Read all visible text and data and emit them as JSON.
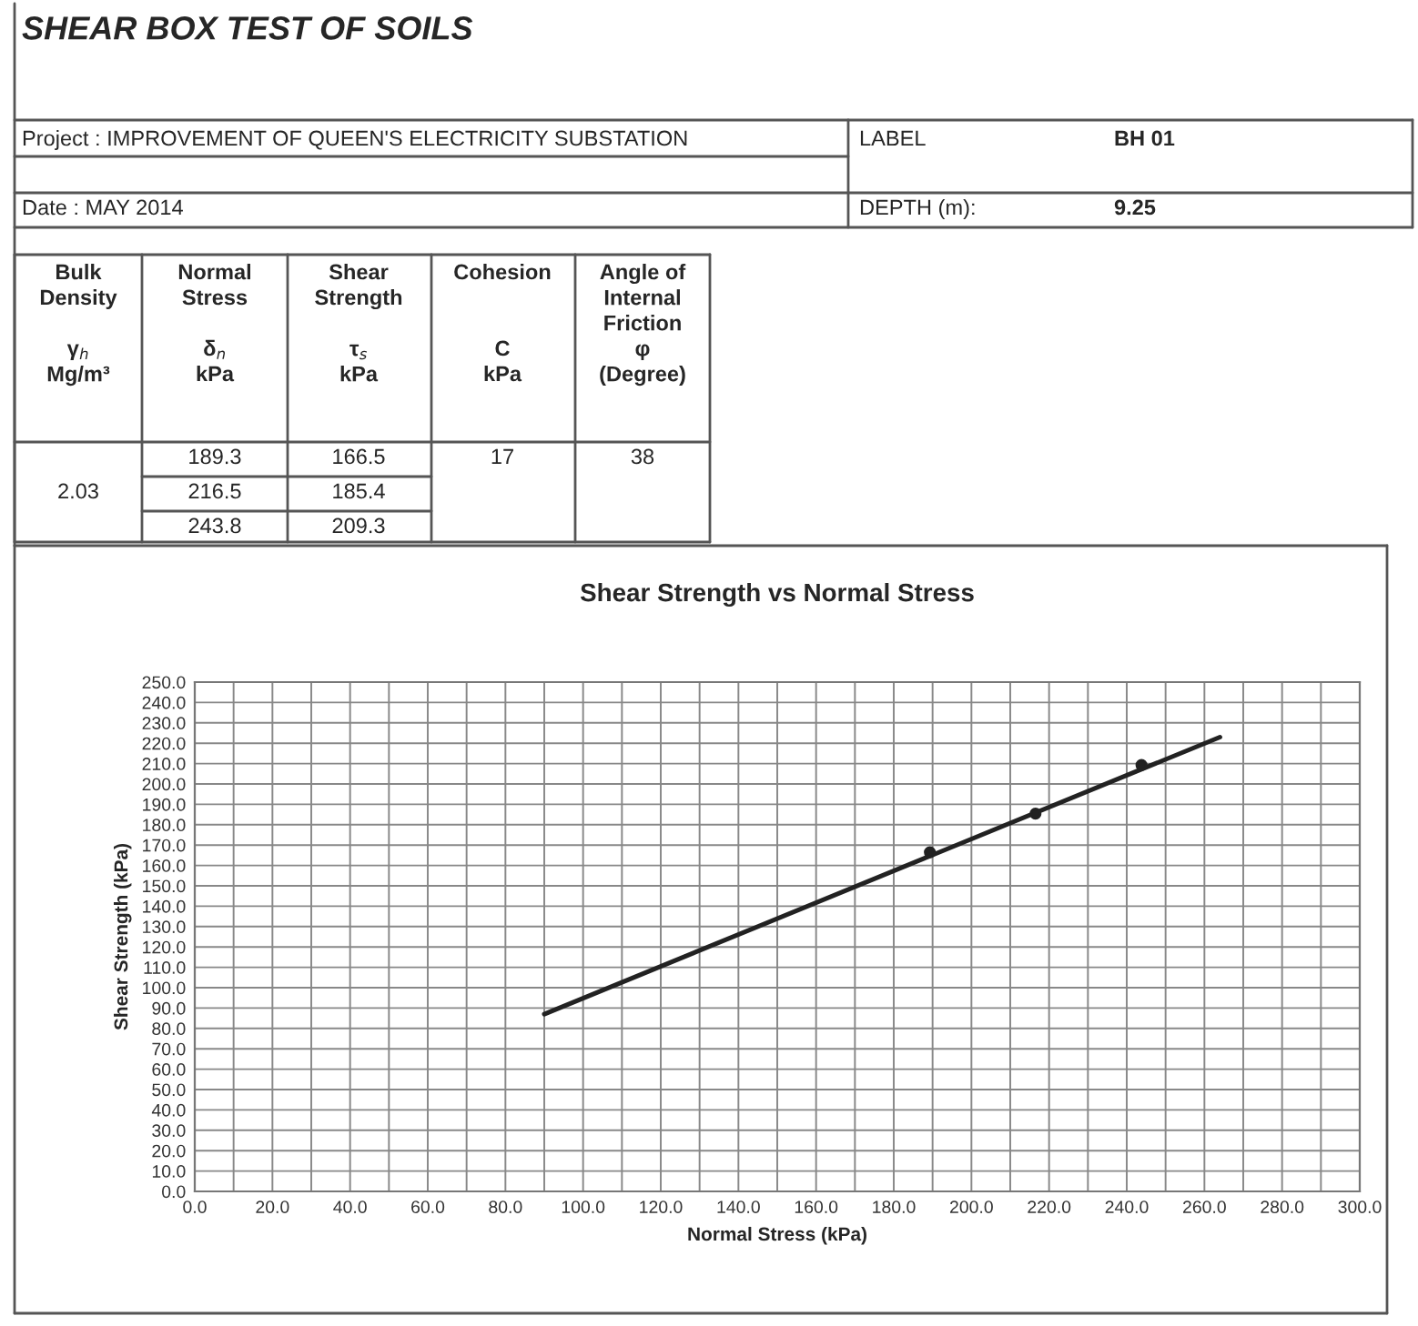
{
  "chart_data": {
    "type": "scatter",
    "title": "Shear Strength vs Normal Stress",
    "xlabel": "Normal Stress (kPa)",
    "ylabel": "Shear Strength (kPa)",
    "annotations": [
      "SHEAR BOX TEST OF SOILS",
      "Project : IMPROVEMENT OF QUEEN'S ELECTRICITY SUBSTATION",
      "Date : MAY 2014",
      "LABEL",
      "BH 01",
      "DEPTH (m):",
      "9.25",
      "Bulk\nDensity\n\nγ$_{h}$\nMg/m³",
      "Normal\nStress\n\nδ$_{n}$\nkPa",
      "Shear\nStrength\n\nτ$_{s}$\nkPa",
      "Cohesion\n\n\nC\nkPa",
      "Angle of\nInternal\nFriction\nφ\n(Degree)",
      "2.03",
      "189.3",
      "216.5",
      "243.8",
      "166.5",
      "185.4",
      "209.3",
      "17",
      "38"
    ],
    "series": [
      {
        "color": "#222222",
        "marker": "circle",
        "x": [
          189.3,
          216.5,
          243.8
        ],
        "values": [
          166.5,
          185.4,
          209.3
        ]
      },
      {
        "type": "line",
        "color": "#222222",
        "marker": "none",
        "line_style": "solid",
        "x": [
          90,
          264
        ],
        "values": [
          87,
          223
        ]
      }
    ],
    "xlim": [
      0,
      300
    ],
    "ylim": [
      0,
      250
    ],
    "xticks": [
      {
        "value": 0,
        "label": "0.0"
      },
      {
        "value": 10,
        "label": null
      },
      {
        "value": 20,
        "label": "20.0"
      },
      {
        "value": 30,
        "label": null
      },
      {
        "value": 40,
        "label": "40.0"
      },
      {
        "value": 50,
        "label": null
      },
      {
        "value": 60,
        "label": "60.0"
      },
      {
        "value": 70,
        "label": null
      },
      {
        "value": 80,
        "label": "80.0"
      },
      {
        "value": 90,
        "label": null
      },
      {
        "value": 100,
        "label": "100.0"
      },
      {
        "value": 110,
        "label": null
      },
      {
        "value": 120,
        "label": "120.0"
      },
      {
        "value": 130,
        "label": null
      },
      {
        "value": 140,
        "label": "140.0"
      },
      {
        "value": 150,
        "label": null
      },
      {
        "value": 160,
        "label": "160.0"
      },
      {
        "value": 170,
        "label": null
      },
      {
        "value": 180,
        "label": "180.0"
      },
      {
        "value": 190,
        "label": null
      },
      {
        "value": 200,
        "label": "200.0"
      },
      {
        "value": 210,
        "label": null
      },
      {
        "value": 220,
        "label": "220.0"
      },
      {
        "value": 230,
        "label": null
      },
      {
        "value": 240,
        "label": "240.0"
      },
      {
        "value": 250,
        "label": null
      },
      {
        "value": 260,
        "label": "260.0"
      },
      {
        "value": 270,
        "label": null
      },
      {
        "value": 280,
        "label": "280.0"
      },
      {
        "value": 290,
        "label": null
      },
      {
        "value": 300,
        "label": "300.0"
      }
    ],
    "yticks": [
      {
        "value": 0,
        "label": "0.0"
      },
      {
        "value": 10,
        "label": "10.0"
      },
      {
        "value": 20,
        "label": "20.0"
      },
      {
        "value": 30,
        "label": "30.0"
      },
      {
        "value": 40,
        "label": "40.0"
      },
      {
        "value": 50,
        "label": "50.0"
      },
      {
        "value": 60,
        "label": "60.0"
      },
      {
        "value": 70,
        "label": "70.0"
      },
      {
        "value": 80,
        "label": "80.0"
      },
      {
        "value": 90,
        "label": "90.0"
      },
      {
        "value": 100,
        "label": "100.0"
      },
      {
        "value": 110,
        "label": "110.0"
      },
      {
        "value": 120,
        "label": "120.0"
      },
      {
        "value": 130,
        "label": "130.0"
      },
      {
        "value": 140,
        "label": "140.0"
      },
      {
        "value": 150,
        "label": "150.0"
      },
      {
        "value": 160,
        "label": "160.0"
      },
      {
        "value": 170,
        "label": "170.0"
      },
      {
        "value": 180,
        "label": "180.0"
      },
      {
        "value": 190,
        "label": "190.0"
      },
      {
        "value": 200,
        "label": "200.0"
      },
      {
        "value": 210,
        "label": "210.0"
      },
      {
        "value": 220,
        "label": "220.0"
      },
      {
        "value": 230,
        "label": "230.0"
      },
      {
        "value": 240,
        "label": "240.0"
      },
      {
        "value": 250,
        "label": "250.0"
      }
    ],
    "grid": true
  }
}
